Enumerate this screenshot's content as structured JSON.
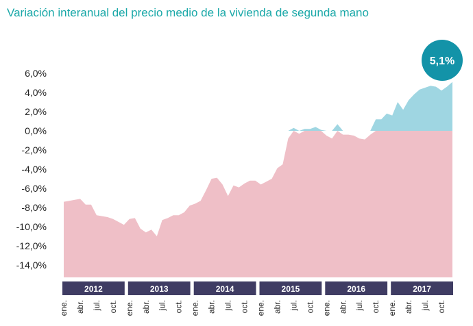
{
  "chart_data": {
    "type": "area",
    "title": "Variación interanual del precio medio de la vivienda de segunda mano",
    "callout": "5,1%",
    "ylim": [
      -14,
      6
    ],
    "yticks": [
      "6,0%",
      "4,0%",
      "2,0%",
      "0,0%",
      "-2,0%",
      "-4,0%",
      "-6,0%",
      "-8,0%",
      "-10,0%",
      "-12,0%",
      "-14,0%"
    ],
    "ytick_values": [
      6,
      4,
      2,
      0,
      -2,
      -4,
      -6,
      -8,
      -10,
      -12,
      -14
    ],
    "years": [
      "2012",
      "2013",
      "2014",
      "2015",
      "2016",
      "2017"
    ],
    "month_labels": [
      "ene.",
      "abr.",
      "jul.",
      "oct."
    ],
    "grid": false,
    "colors": {
      "title": "#1aa8a8",
      "positive": "#9fd6e2",
      "negative": "#efbfc7",
      "year_band": "#3f3c63",
      "callout": "#1393a8"
    },
    "series": [
      {
        "values": [
          -7.4,
          -7.3,
          -7.2,
          -7.1,
          -7.7,
          -7.7,
          -8.8,
          -8.9,
          -9.0,
          -9.2,
          -9.5,
          -9.8,
          -9.2,
          -9.1,
          -10.2,
          -10.6,
          -10.3,
          -11.0,
          -9.3,
          -9.1,
          -8.8,
          -8.8,
          -8.5,
          -7.8,
          -7.6,
          -7.3,
          -6.2,
          -5.0,
          -4.9,
          -5.6,
          -6.8,
          -5.7,
          -5.9,
          -5.5,
          -5.2,
          -5.2,
          -5.6,
          -5.3,
          -5.0,
          -3.9,
          -3.5,
          -0.8,
          0.3,
          -0.3,
          0.2,
          0.2,
          0.4,
          0.1,
          -0.5,
          -0.8,
          0.7,
          -0.4,
          -0.4,
          -0.5,
          -0.8,
          -0.9,
          -0.4,
          1.2,
          1.2,
          1.8,
          1.6,
          3.0,
          2.2,
          3.2,
          3.8,
          4.3,
          4.5,
          4.7,
          4.6,
          4.2,
          4.6,
          5.1
        ]
      }
    ]
  }
}
